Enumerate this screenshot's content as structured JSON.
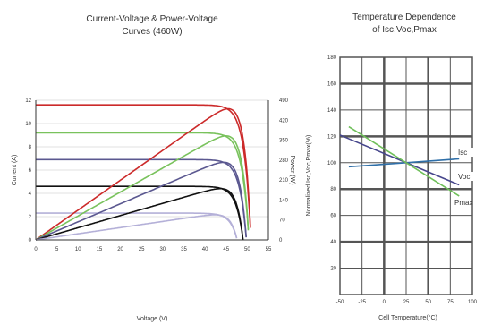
{
  "chart_data": [
    {
      "type": "line",
      "title": "Current-Voltage & Power-Voltage",
      "subtitle": "Curves (460W)",
      "xlabel": "Voltage (V)",
      "ylabel": "Current (A)",
      "y2label": "Power (W)",
      "xlim": [
        0,
        55
      ],
      "ylim": [
        0,
        12
      ],
      "y2lim": [
        0,
        490
      ],
      "x_ticks": [
        "0",
        "5",
        "10",
        "15",
        "20",
        "25",
        "30",
        "35",
        "40",
        "45",
        "50",
        "55"
      ],
      "y_ticks": [
        "0",
        "2",
        "4",
        "6",
        "8",
        "10",
        "12"
      ],
      "y2_ticks": [
        "0",
        "70",
        "140",
        "210",
        "280",
        "350",
        "420",
        "490"
      ],
      "grid": true,
      "colors": [
        "#cc2a2a",
        "#79c25c",
        "#5b5890",
        "#111111",
        "#b4b0d8"
      ],
      "iv_curves": [
        {
          "isc": 11.6,
          "voc": 50.9,
          "vmp": 43.0
        },
        {
          "isc": 9.2,
          "voc": 50.4,
          "vmp": 43.1
        },
        {
          "isc": 6.9,
          "voc": 49.8,
          "vmp": 43.0
        },
        {
          "isc": 4.6,
          "voc": 49.0,
          "vmp": 42.6
        },
        {
          "isc": 2.3,
          "voc": 47.6,
          "vmp": 41.4
        }
      ],
      "pv_peaks_w": [
        460,
        365,
        272,
        180,
        88
      ]
    },
    {
      "type": "line",
      "title": "Temperature Dependence",
      "subtitle": "of Isc,Voc,Pmax",
      "xlabel": "Cell Temperature(°C)",
      "ylabel": "Normalized Isc,Voc,Pmax(%)",
      "xlim": [
        -50,
        100
      ],
      "ylim": [
        0,
        180
      ],
      "x_ticks": [
        "-50",
        "-25",
        "0",
        "25",
        "50",
        "75",
        "100"
      ],
      "y_ticks": [
        "20",
        "40",
        "60",
        "80",
        "100",
        "120",
        "140",
        "160",
        "180"
      ],
      "grid": true,
      "series": [
        {
          "name": "Isc",
          "color": "#2f6fa8",
          "x": [
            -40,
            25,
            85
          ],
          "y": [
            96.9,
            100,
            102.9
          ]
        },
        {
          "name": "Voc",
          "color": "#46468c",
          "x": [
            -50,
            25,
            85
          ],
          "y": [
            121.0,
            100,
            83.2
          ]
        },
        {
          "name": "Pmax",
          "color": "#6fbf5a",
          "x": [
            -40,
            25,
            85
          ],
          "y": [
            127.3,
            100,
            74.8
          ]
        }
      ]
    }
  ]
}
